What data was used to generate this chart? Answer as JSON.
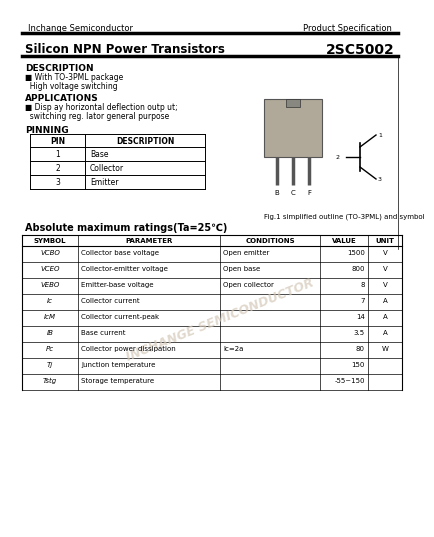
{
  "header_left": "Inchange Semiconductor",
  "header_right": "Product Specification",
  "title_left": "Silicon NPN Power Transistors",
  "title_right": "2SC5002",
  "section_description": "DESCRIPTION",
  "desc_lines": [
    "■ With TO-3PML package",
    "  High voltage switching"
  ],
  "section_applications": "APPLICATIONS",
  "app_lines": [
    "■ Disp ay horizontal deflection outp ut;",
    "  switching reg. lator general purpose"
  ],
  "section_pinning": "PINNING",
  "pin_headers": [
    "PIN",
    "DESCRIPTION"
  ],
  "pin_rows": [
    [
      "1",
      "Base"
    ],
    [
      "2",
      "Collector"
    ],
    [
      "3",
      "Emitter"
    ]
  ],
  "fig_caption": "Fig.1 simplified outline (TO-3PML) and symbol",
  "abs_title": "Absolute maximum ratings(Ta=25℃)",
  "abs_headers": [
    "SYMBOL",
    "PARAMETER",
    "CONDITIONS",
    "VALUE",
    "UNIT"
  ],
  "abs_rows": [
    [
      "VCBO",
      "Collector base voltage",
      "Open emitter",
      "1500",
      "V"
    ],
    [
      "VCEO",
      "Collector-emitter voltage",
      "Open base",
      "800",
      "V"
    ],
    [
      "VEBO",
      "Emitter-base voltage",
      "Open collector",
      "8",
      "V"
    ],
    [
      "Ic",
      "Collector current",
      "",
      "7",
      "A"
    ],
    [
      "IcM",
      "Collector current-peak",
      "",
      "14",
      "A"
    ],
    [
      "IB",
      "Base current",
      "",
      "3.5",
      "A"
    ],
    [
      "Pc",
      "Collector power dissipation",
      "Ic=2a",
      "80",
      "W"
    ],
    [
      "Tj",
      "Junction temperature",
      "",
      "150",
      ""
    ],
    [
      "Tstg",
      "Storage temperature",
      "",
      "-55~150",
      ""
    ]
  ],
  "bg_color": "#ffffff",
  "watermark_color": "#d4c8b8"
}
